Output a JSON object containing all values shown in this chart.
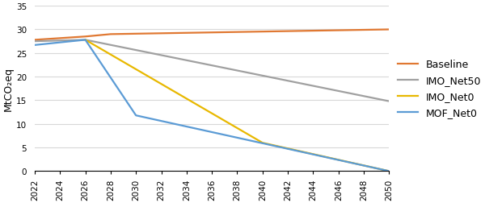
{
  "series": {
    "Baseline": {
      "x": [
        2022,
        2026,
        2028,
        2050
      ],
      "y": [
        27.8,
        28.5,
        29.0,
        30.0
      ],
      "color": "#E07832",
      "linewidth": 1.6
    },
    "IMO_Net50": {
      "x": [
        2022,
        2026,
        2050
      ],
      "y": [
        27.5,
        27.8,
        14.8
      ],
      "color": "#A0A0A0",
      "linewidth": 1.6
    },
    "IMO_Net0": {
      "x": [
        2026,
        2040,
        2050
      ],
      "y": [
        27.8,
        6.0,
        0.0
      ],
      "color": "#E8B800",
      "linewidth": 1.6
    },
    "MOF_Net0": {
      "x": [
        2022,
        2026,
        2030,
        2050
      ],
      "y": [
        26.7,
        27.8,
        11.8,
        0.0
      ],
      "color": "#5B9BD5",
      "linewidth": 1.6
    }
  },
  "ylabel": "MtCO₂eq",
  "ylim": [
    0,
    35
  ],
  "yticks": [
    0,
    5,
    10,
    15,
    20,
    25,
    30,
    35
  ],
  "xlim": [
    2022,
    2050
  ],
  "xticks": [
    2022,
    2024,
    2026,
    2028,
    2030,
    2032,
    2034,
    2036,
    2038,
    2040,
    2042,
    2044,
    2046,
    2048,
    2050
  ],
  "legend_order": [
    "Baseline",
    "IMO_Net50",
    "IMO_Net0",
    "MOF_Net0"
  ],
  "background_color": "#ffffff",
  "grid_color": "#d8d8d8",
  "figsize": [
    6.0,
    2.53
  ],
  "dpi": 100
}
